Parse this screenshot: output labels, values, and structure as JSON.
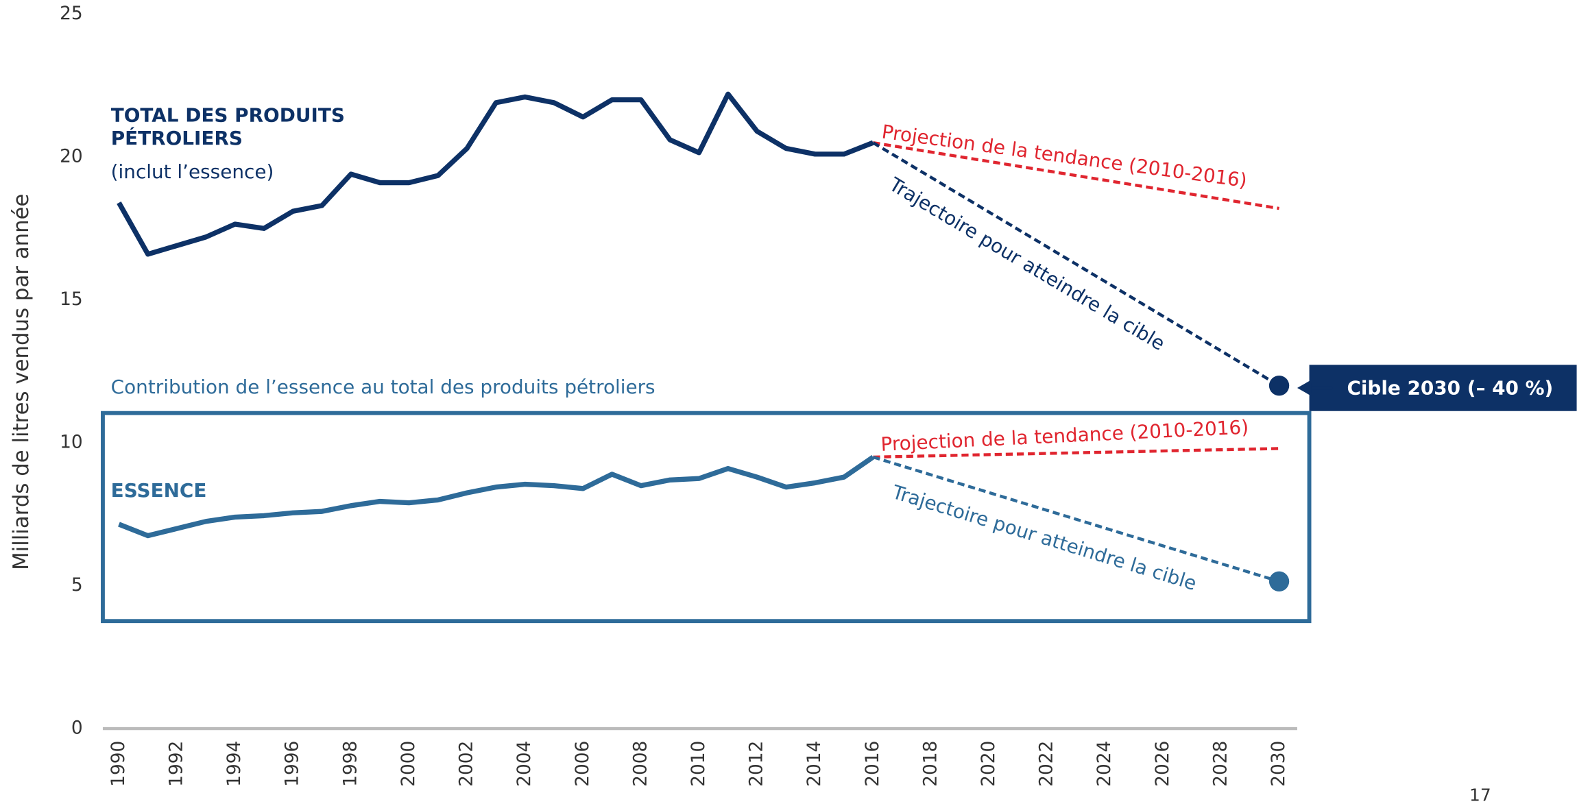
{
  "page_number": "17",
  "chart_data": {
    "type": "line",
    "ylabel": "Milliards de litres vendus par année",
    "xlim": [
      1990,
      2030
    ],
    "ylim": [
      0,
      25
    ],
    "xticks": [
      1990,
      1992,
      1994,
      1996,
      1998,
      2000,
      2002,
      2004,
      2006,
      2008,
      2010,
      2012,
      2014,
      2016,
      2018,
      2020,
      2022,
      2024,
      2026,
      2028,
      2030
    ],
    "yticks": [
      0,
      5,
      10,
      15,
      20,
      25
    ],
    "grid": false,
    "series": [
      {
        "name": "TOTAL DES PRODUITS PÉTROLIERS",
        "color": "#0d3166",
        "dash": false,
        "x": [
          1990,
          1991,
          1992,
          1993,
          1994,
          1995,
          1996,
          1997,
          1998,
          1999,
          2000,
          2001,
          2002,
          2003,
          2004,
          2005,
          2006,
          2007,
          2008,
          2009,
          2010,
          2011,
          2012,
          2013,
          2014,
          2015,
          2016
        ],
        "values": [
          18.4,
          16.6,
          16.9,
          17.2,
          17.65,
          17.5,
          18.1,
          18.3,
          19.4,
          19.1,
          19.1,
          19.35,
          20.3,
          21.9,
          22.1,
          21.9,
          21.4,
          22.0,
          22.0,
          20.6,
          20.15,
          22.2,
          20.9,
          20.3,
          20.1,
          20.1,
          20.5
        ]
      },
      {
        "name": "Projection de la tendance (2010-2016)",
        "color": "#e0252f",
        "dash": true,
        "x": [
          2016,
          2030
        ],
        "values": [
          20.5,
          18.2
        ]
      },
      {
        "name": "Trajectoire pour atteindre la cible",
        "color": "#0d3166",
        "dash": true,
        "marker": true,
        "x": [
          2016,
          2030
        ],
        "values": [
          20.5,
          12.0
        ]
      },
      {
        "name": "ESSENCE",
        "color": "#2e6b99",
        "dash": false,
        "x": [
          1990,
          1991,
          1992,
          1993,
          1994,
          1995,
          1996,
          1997,
          1998,
          1999,
          2000,
          2001,
          2002,
          2003,
          2004,
          2005,
          2006,
          2007,
          2008,
          2009,
          2010,
          2011,
          2012,
          2013,
          2014,
          2015,
          2016
        ],
        "values": [
          7.15,
          6.75,
          7.0,
          7.25,
          7.4,
          7.45,
          7.55,
          7.6,
          7.8,
          7.95,
          7.9,
          8.0,
          8.25,
          8.45,
          8.55,
          8.5,
          8.4,
          8.9,
          8.5,
          8.7,
          8.75,
          9.1,
          8.8,
          8.45,
          8.6,
          8.8,
          9.5
        ]
      },
      {
        "name": "Projection de la tendance (2010-2016)",
        "color": "#e0252f",
        "dash": true,
        "x": [
          2016,
          2030
        ],
        "values": [
          9.5,
          9.8
        ]
      },
      {
        "name": "Trajectoire pour atteindre la cible",
        "color": "#2e6b99",
        "dash": true,
        "marker": true,
        "x": [
          2016,
          2030
        ],
        "values": [
          9.5,
          5.15
        ]
      }
    ],
    "annotations": [
      "(inclut l’essence)",
      "Contribution de l’essence au total des produits pétroliers",
      "Cible 2030 (– 40 %)"
    ]
  }
}
